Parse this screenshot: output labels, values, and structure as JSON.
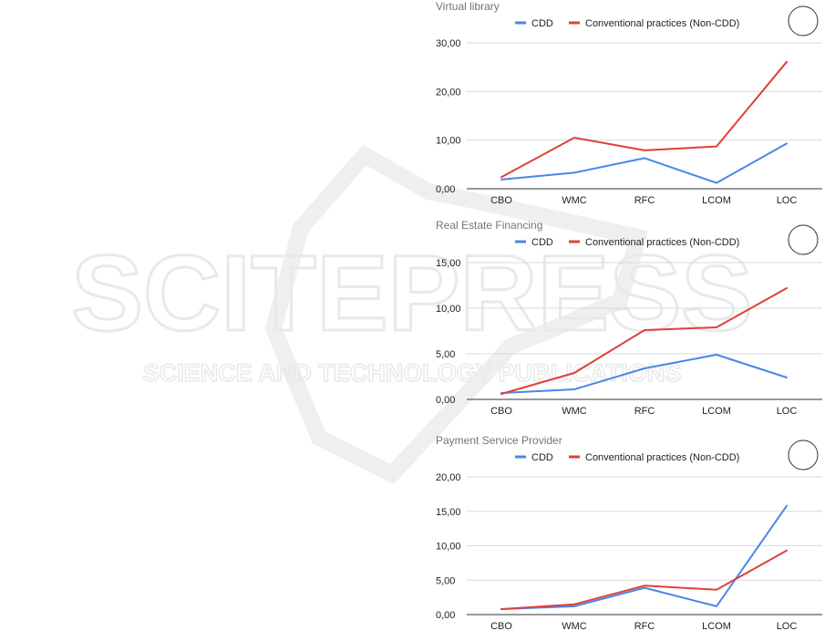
{
  "watermark": {
    "line1": "SCITEPRESS",
    "line2": "SCIENCE AND TECHNOLOGY PUBLICATIONS"
  },
  "colors": {
    "cdd": "#4a86e8",
    "non_cdd": "#e0403a"
  },
  "chart_data": [
    {
      "type": "line",
      "title": "Virtual library",
      "categories": [
        "CBO",
        "WMC",
        "RFC",
        "LCOM",
        "LOC"
      ],
      "series": [
        {
          "name": "CDD",
          "values": [
            1.9,
            3.3,
            6.3,
            1.2,
            9.3
          ]
        },
        {
          "name": "Conventional practices (Non-CDD)",
          "values": [
            2.4,
            10.5,
            7.9,
            8.7,
            26.1
          ]
        }
      ],
      "ylim": [
        0,
        30
      ],
      "yticks": [
        0,
        10,
        20,
        30
      ],
      "ytick_labels": [
        "0,00",
        "10,00",
        "20,00",
        "30,00"
      ],
      "grid": true,
      "legend": "top"
    },
    {
      "type": "line",
      "title": "Real Estate Financing",
      "categories": [
        "CBO",
        "WMC",
        "RFC",
        "LCOM",
        "LOC"
      ],
      "series": [
        {
          "name": "CDD",
          "values": [
            0.7,
            1.1,
            3.4,
            4.9,
            2.4
          ]
        },
        {
          "name": "Conventional practices (Non-CDD)",
          "values": [
            0.6,
            2.9,
            7.6,
            7.9,
            12.2
          ]
        }
      ],
      "ylim": [
        0,
        15
      ],
      "yticks": [
        0,
        5,
        10,
        15
      ],
      "ytick_labels": [
        "0,00",
        "5,00",
        "10,00",
        "15,00"
      ],
      "grid": true,
      "legend": "top"
    },
    {
      "type": "line",
      "title": "Payment Service Provider",
      "categories": [
        "CBO",
        "WMC",
        "RFC",
        "LCOM",
        "LOC"
      ],
      "series": [
        {
          "name": "CDD",
          "values": [
            0.8,
            1.2,
            3.9,
            1.2,
            15.8
          ]
        },
        {
          "name": "Conventional practices (Non-CDD)",
          "values": [
            0.8,
            1.5,
            4.2,
            3.6,
            9.3
          ]
        }
      ],
      "ylim": [
        0,
        20
      ],
      "yticks": [
        0,
        5,
        10,
        15,
        20
      ],
      "ytick_labels": [
        "0,00",
        "5,00",
        "10,00",
        "15,00",
        "20,00"
      ],
      "grid": true,
      "legend": "top"
    }
  ]
}
